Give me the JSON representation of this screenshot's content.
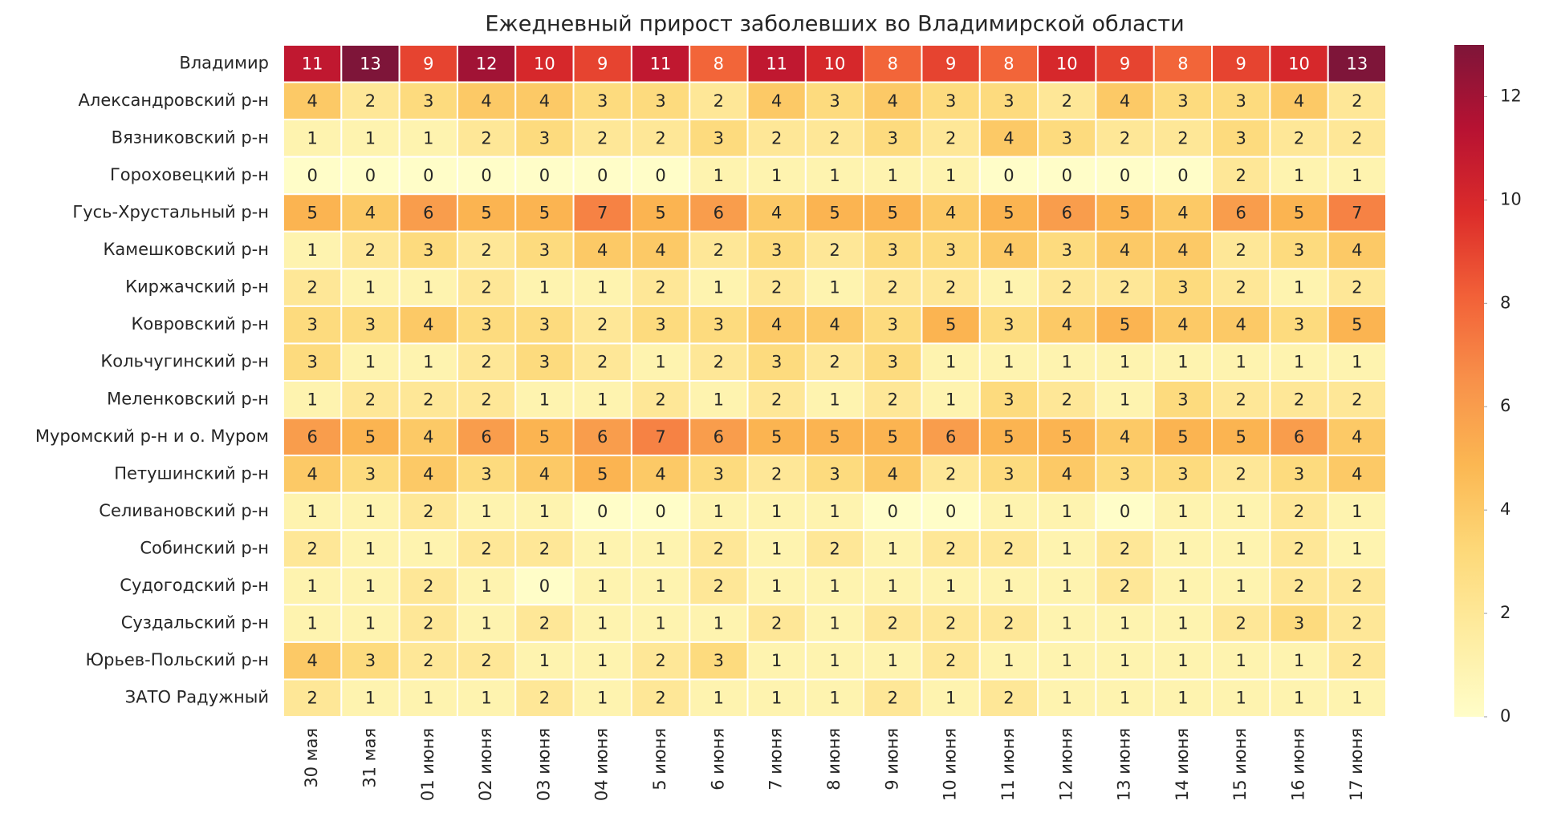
{
  "chart_data": {
    "type": "heatmap",
    "title": "Ежедневный прирост заболевших во Владимирской области",
    "x_categories": [
      "30 мая",
      "31 мая",
      "01 июня",
      "02 июня",
      "03 июня",
      "04 июня",
      "5 июня",
      "6 июня",
      "7 июня",
      "8 июня",
      "9 июня",
      "10 июня",
      "11 июня",
      "12 июня",
      "13 июня",
      "14 июня",
      "15 июня",
      "16 июня",
      "17 июня"
    ],
    "y_categories": [
      "Владимир",
      "Александровский р-н",
      "Вязниковский р-н",
      "Гороховецкий р-н",
      "Гусь-Хрустальный р-н",
      "Камешковский р-н",
      "Киржачский р-н",
      "Ковровский р-н",
      "Кольчугинский р-н",
      "Меленковский р-н",
      "Муромский р-н и о. Муром",
      "Петушинский р-н",
      "Селивановский р-н",
      "Собинский р-н",
      "Судогодский р-н",
      "Суздальский р-н",
      "Юрьев-Польский р-н",
      "ЗАТО Радужный"
    ],
    "values": [
      [
        11,
        13,
        9,
        12,
        10,
        9,
        11,
        8,
        11,
        10,
        8,
        9,
        8,
        10,
        9,
        8,
        9,
        10,
        13
      ],
      [
        4,
        2,
        3,
        4,
        4,
        3,
        3,
        2,
        4,
        3,
        4,
        3,
        3,
        2,
        4,
        3,
        3,
        4,
        2
      ],
      [
        1,
        1,
        1,
        2,
        3,
        2,
        2,
        3,
        2,
        2,
        3,
        2,
        4,
        3,
        2,
        2,
        3,
        2,
        2
      ],
      [
        0,
        0,
        0,
        0,
        0,
        0,
        0,
        1,
        1,
        1,
        1,
        1,
        0,
        0,
        0,
        0,
        2,
        1,
        1
      ],
      [
        5,
        4,
        6,
        5,
        5,
        7,
        5,
        6,
        4,
        5,
        5,
        4,
        5,
        6,
        5,
        4,
        6,
        5,
        7
      ],
      [
        1,
        2,
        3,
        2,
        3,
        4,
        4,
        2,
        3,
        2,
        3,
        3,
        4,
        3,
        4,
        4,
        2,
        3,
        4
      ],
      [
        2,
        1,
        1,
        2,
        1,
        1,
        2,
        1,
        2,
        1,
        2,
        2,
        1,
        2,
        2,
        3,
        2,
        1,
        2
      ],
      [
        3,
        3,
        4,
        3,
        3,
        2,
        3,
        3,
        4,
        4,
        3,
        5,
        3,
        4,
        5,
        4,
        4,
        3,
        5
      ],
      [
        3,
        1,
        1,
        2,
        3,
        2,
        1,
        2,
        3,
        2,
        3,
        1,
        1,
        1,
        1,
        1,
        1,
        1,
        1
      ],
      [
        1,
        2,
        2,
        2,
        1,
        1,
        2,
        1,
        2,
        1,
        2,
        1,
        3,
        2,
        1,
        3,
        2,
        2,
        2
      ],
      [
        6,
        5,
        4,
        6,
        5,
        6,
        7,
        6,
        5,
        5,
        5,
        6,
        5,
        5,
        4,
        5,
        5,
        6,
        4
      ],
      [
        4,
        3,
        4,
        3,
        4,
        5,
        4,
        3,
        2,
        3,
        4,
        2,
        3,
        4,
        3,
        3,
        2,
        3,
        4
      ],
      [
        1,
        1,
        2,
        1,
        1,
        0,
        0,
        1,
        1,
        1,
        0,
        0,
        1,
        1,
        0,
        1,
        1,
        2,
        1
      ],
      [
        2,
        1,
        1,
        2,
        2,
        1,
        1,
        2,
        1,
        2,
        1,
        2,
        2,
        1,
        2,
        1,
        1,
        2,
        1
      ],
      [
        1,
        1,
        2,
        1,
        0,
        1,
        1,
        2,
        1,
        1,
        1,
        1,
        1,
        1,
        2,
        1,
        1,
        2,
        2
      ],
      [
        1,
        1,
        2,
        1,
        2,
        1,
        1,
        1,
        2,
        1,
        2,
        2,
        2,
        1,
        1,
        1,
        2,
        3,
        2
      ],
      [
        4,
        3,
        2,
        2,
        1,
        1,
        2,
        3,
        1,
        1,
        1,
        2,
        1,
        1,
        1,
        1,
        1,
        1,
        2
      ],
      [
        2,
        1,
        1,
        1,
        2,
        1,
        2,
        1,
        1,
        1,
        2,
        1,
        2,
        1,
        1,
        1,
        1,
        1,
        1
      ]
    ],
    "clim": [
      0,
      13
    ],
    "cticks": [
      0,
      2,
      4,
      6,
      8,
      10,
      12
    ],
    "colorscale": [
      "#fffdc8",
      "#feeca0",
      "#fdd878",
      "#fbb752",
      "#f8914a",
      "#f26138",
      "#dc2c2a",
      "#b71232",
      "#7e1539"
    ]
  }
}
